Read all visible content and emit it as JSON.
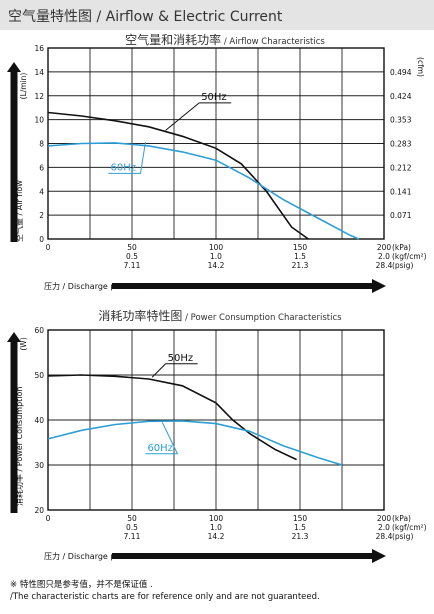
{
  "header": {
    "title": "空气量特性图 / Airflow & Electric Current"
  },
  "footnote": {
    "line1": "※ 特性图只是参考值，并不是保证值 .",
    "line2": "/The characteristic charts are for reference only and are not guaranteed."
  },
  "colors": {
    "series_50hz": "#111111",
    "series_60hz": "#2e9fd4",
    "header_bg": "#e4e4e4"
  },
  "chart_data": [
    {
      "type": "line",
      "title": "空气量和消耗功率",
      "subtitle": "/ Airflow Characteristics",
      "xlabel": "压力 / Discharge pressure",
      "ylabel": "空气量 / Air flow",
      "ylabel_unit": "(L/min)",
      "y2label_unit": "(cfm)",
      "x_unit_labels": [
        "(kPa)",
        "(kgf/cm²)",
        "(psig)"
      ],
      "xlim": [
        0,
        200
      ],
      "ylim": [
        0,
        16
      ],
      "grid": true,
      "x_ticks": [
        {
          "v": 0,
          "kpa": "0",
          "kgf": "",
          "psig": ""
        },
        {
          "v": 50,
          "kpa": "50",
          "kgf": "0.5",
          "psig": "7.11"
        },
        {
          "v": 100,
          "kpa": "100",
          "kgf": "1.0",
          "psig": "14.2"
        },
        {
          "v": 150,
          "kpa": "150",
          "kgf": "1.5",
          "psig": "21.3"
        },
        {
          "v": 200,
          "kpa": "200",
          "kgf": "2.0",
          "psig": "28.4"
        }
      ],
      "y_ticks": [
        0,
        2,
        4,
        6,
        8,
        10,
        12,
        14
      ],
      "y2_ticks": [
        {
          "at": 2,
          "label": "0.071"
        },
        {
          "at": 4,
          "label": "0.141"
        },
        {
          "at": 6,
          "label": "0.212"
        },
        {
          "at": 8,
          "label": "0.283"
        },
        {
          "at": 10,
          "label": "0.353"
        },
        {
          "at": 12,
          "label": "0.424"
        },
        {
          "at": 14,
          "label": "0.494"
        }
      ],
      "series": [
        {
          "name": "50Hz",
          "color": "#111111",
          "label_at": [
            90,
            11.4
          ],
          "pointer_to": [
            70,
            9.1
          ],
          "points": [
            [
              0,
              10.6
            ],
            [
              20,
              10.3
            ],
            [
              40,
              9.9
            ],
            [
              60,
              9.4
            ],
            [
              80,
              8.6
            ],
            [
              100,
              7.6
            ],
            [
              115,
              6.3
            ],
            [
              130,
              4.0
            ],
            [
              145,
              1.0
            ],
            [
              155,
              0
            ]
          ]
        },
        {
          "name": "60Hz",
          "color": "#2e9fd4",
          "label_at": [
            36,
            5.5
          ],
          "pointer_to": [
            58,
            8.1
          ],
          "points": [
            [
              0,
              7.8
            ],
            [
              20,
              8.0
            ],
            [
              40,
              8.05
            ],
            [
              60,
              7.8
            ],
            [
              80,
              7.3
            ],
            [
              100,
              6.6
            ],
            [
              120,
              5.1
            ],
            [
              140,
              3.3
            ],
            [
              160,
              1.8
            ],
            [
              180,
              0.3
            ],
            [
              185,
              0
            ]
          ]
        }
      ]
    },
    {
      "type": "line",
      "title": "消耗功率特性图",
      "subtitle": "/ Power Consumption Characteristics",
      "xlabel": "压力 / Discharge pressure",
      "ylabel": "消耗功率 / Power Consumption",
      "ylabel_unit": "(W)",
      "x_unit_labels": [
        "(kPa)",
        "(kgf/cm²)",
        "(psig)"
      ],
      "xlim": [
        0,
        200
      ],
      "ylim": [
        20,
        60
      ],
      "grid": true,
      "x_ticks": [
        {
          "v": 0,
          "kpa": "0",
          "kgf": "",
          "psig": ""
        },
        {
          "v": 50,
          "kpa": "50",
          "kgf": "0.5",
          "psig": "7.11"
        },
        {
          "v": 100,
          "kpa": "100",
          "kgf": "1.0",
          "psig": "14.2"
        },
        {
          "v": 150,
          "kpa": "150",
          "kgf": "1.5",
          "psig": "21.3"
        },
        {
          "v": 200,
          "kpa": "200",
          "kgf": "2.0",
          "psig": "28.4"
        }
      ],
      "y_ticks": [
        20,
        30,
        40,
        50,
        60
      ],
      "series": [
        {
          "name": "50Hz",
          "color": "#111111",
          "label_at": [
            70,
            52.5
          ],
          "pointer_to": [
            62,
            49.5
          ],
          "points": [
            [
              0,
              49.8
            ],
            [
              20,
              50.0
            ],
            [
              40,
              49.7
            ],
            [
              60,
              49.1
            ],
            [
              80,
              47.6
            ],
            [
              100,
              43.8
            ],
            [
              110,
              40.0
            ],
            [
              120,
              37.0
            ],
            [
              135,
              33.5
            ],
            [
              148,
              31.2
            ]
          ]
        },
        {
          "name": "60Hz",
          "color": "#2e9fd4",
          "label_at": [
            58,
            32.5
          ],
          "pointer_to": [
            68,
            39.5
          ],
          "points": [
            [
              0,
              35.8
            ],
            [
              20,
              37.7
            ],
            [
              40,
              39.0
            ],
            [
              60,
              39.7
            ],
            [
              80,
              39.8
            ],
            [
              100,
              39.2
            ],
            [
              120,
              37.5
            ],
            [
              140,
              34.3
            ],
            [
              160,
              31.7
            ],
            [
              175,
              30.0
            ]
          ]
        }
      ]
    }
  ]
}
